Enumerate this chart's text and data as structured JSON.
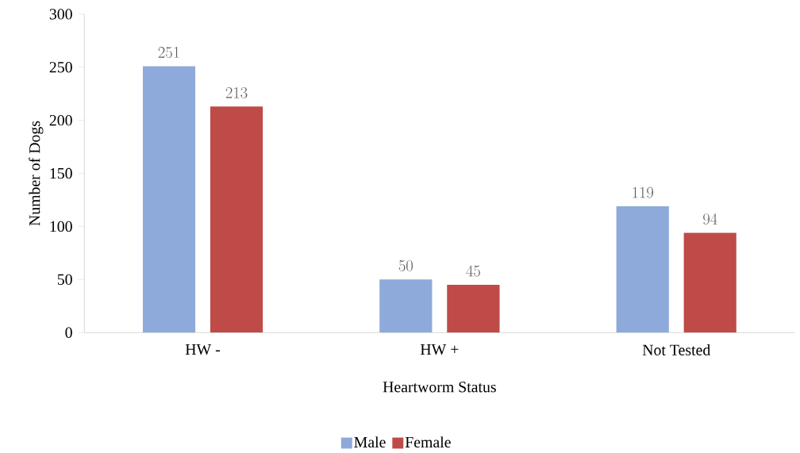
{
  "chart_data": {
    "type": "bar",
    "xlabel": "Heartworm Status",
    "ylabel": "Number of Dogs",
    "categories": [
      "HW -",
      "HW +",
      "Not Tested"
    ],
    "series": [
      {
        "name": "Male",
        "color": "#8eaadb",
        "values": [
          251,
          50,
          119
        ]
      },
      {
        "name": "Female",
        "color": "#be4b48",
        "values": [
          213,
          45,
          94
        ]
      }
    ],
    "ylim": [
      0,
      300
    ],
    "yticks": [
      0,
      50,
      100,
      150,
      200,
      250,
      300
    ],
    "data_labels": true,
    "legend": "bottom",
    "grid": false
  }
}
